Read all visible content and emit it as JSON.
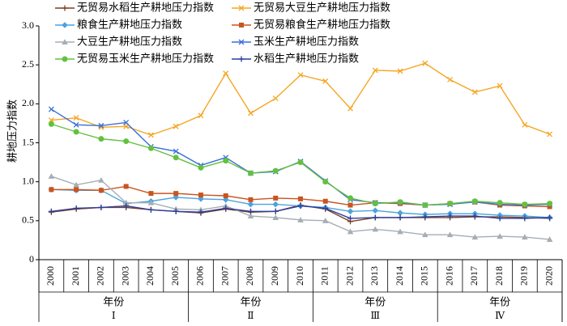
{
  "chart_data": {
    "type": "line",
    "ylabel": "耕地压力指数",
    "ylim": [
      0,
      3.0
    ],
    "yticks": [
      "0",
      "0.5",
      "1.0",
      "1.5",
      "2.0",
      "2.5",
      "3.0"
    ],
    "yticks_values": [
      0,
      0.5,
      1.0,
      1.5,
      2.0,
      2.5,
      3.0
    ],
    "x": [
      "2000",
      "2001",
      "2002",
      "2003",
      "2004",
      "2005",
      "2006",
      "2007",
      "2008",
      "2009",
      "2010",
      "2011",
      "2012",
      "2013",
      "2014",
      "2015",
      "2016",
      "2017",
      "2018",
      "2019",
      "2020"
    ],
    "groups": [
      {
        "xlabel": "年份",
        "period": "Ⅰ",
        "start": 0,
        "end": 5
      },
      {
        "xlabel": "年份",
        "period": "Ⅱ",
        "start": 6,
        "end": 10
      },
      {
        "xlabel": "年份",
        "period": "Ⅲ",
        "start": 11,
        "end": 15
      },
      {
        "xlabel": "年份",
        "period": "Ⅳ",
        "start": 16,
        "end": 20
      }
    ],
    "legend_placement": "top",
    "series": [
      {
        "name": "无贸易水稻生产耕地压力指数",
        "color": "#7b3f1d",
        "marker": "plus",
        "values": [
          0.61,
          0.65,
          0.67,
          0.67,
          0.64,
          0.62,
          0.6,
          0.65,
          0.61,
          0.62,
          0.7,
          0.65,
          0.49,
          0.54,
          0.54,
          0.54,
          0.54,
          0.55,
          0.55,
          0.54,
          0.53
        ]
      },
      {
        "name": "无贸易大豆生产耕地压力指数",
        "color": "#f5a623",
        "marker": "x",
        "values": [
          1.79,
          1.82,
          1.7,
          1.71,
          1.6,
          1.71,
          1.85,
          2.39,
          1.88,
          2.07,
          2.37,
          2.29,
          1.94,
          2.43,
          2.42,
          2.52,
          2.31,
          2.15,
          2.23,
          1.73,
          1.61
        ]
      },
      {
        "name": "粮食生产耕地压力指数",
        "color": "#4aa3df",
        "marker": "diamond",
        "values": [
          0.9,
          0.89,
          0.89,
          0.72,
          0.75,
          0.8,
          0.78,
          0.77,
          0.71,
          0.71,
          0.69,
          0.67,
          0.62,
          0.63,
          0.6,
          0.58,
          0.59,
          0.59,
          0.57,
          0.56,
          0.54
        ]
      },
      {
        "name": "无贸易粮食生产耕地压力指数",
        "color": "#c9541f",
        "marker": "square",
        "values": [
          0.9,
          0.9,
          0.89,
          0.94,
          0.85,
          0.85,
          0.83,
          0.82,
          0.77,
          0.79,
          0.78,
          0.75,
          0.7,
          0.73,
          0.72,
          0.7,
          0.72,
          0.74,
          0.7,
          0.69,
          0.68
        ]
      },
      {
        "name": "大豆生产耕地压力指数",
        "color": "#a5aeb5",
        "marker": "triangle",
        "values": [
          1.07,
          0.96,
          1.02,
          0.73,
          0.73,
          0.65,
          0.64,
          0.69,
          0.56,
          0.54,
          0.51,
          0.5,
          0.36,
          0.39,
          0.36,
          0.32,
          0.32,
          0.29,
          0.3,
          0.29,
          0.26
        ]
      },
      {
        "name": "玉米生产耕地压力指数",
        "color": "#3a6fd8",
        "marker": "x",
        "values": [
          1.93,
          1.73,
          1.72,
          1.76,
          1.45,
          1.39,
          1.21,
          1.31,
          1.11,
          1.13,
          1.26,
          1.01,
          0.77,
          0.73,
          0.73,
          0.7,
          0.71,
          0.74,
          0.71,
          0.7,
          0.71
        ]
      },
      {
        "name": "无贸易玉米生产耕地压力指数",
        "color": "#63c13f",
        "marker": "circle",
        "values": [
          1.74,
          1.64,
          1.55,
          1.52,
          1.43,
          1.31,
          1.18,
          1.27,
          1.11,
          1.14,
          1.25,
          1.0,
          0.79,
          0.72,
          0.74,
          0.7,
          0.72,
          0.75,
          0.73,
          0.71,
          0.72
        ]
      },
      {
        "name": "水稻生产耕地压力指数",
        "color": "#2c3f9e",
        "marker": "plus",
        "values": [
          0.62,
          0.66,
          0.67,
          0.69,
          0.64,
          0.62,
          0.61,
          0.66,
          0.62,
          0.62,
          0.69,
          0.66,
          0.53,
          0.54,
          0.54,
          0.55,
          0.56,
          0.56,
          0.53,
          0.53,
          0.54
        ]
      }
    ]
  }
}
